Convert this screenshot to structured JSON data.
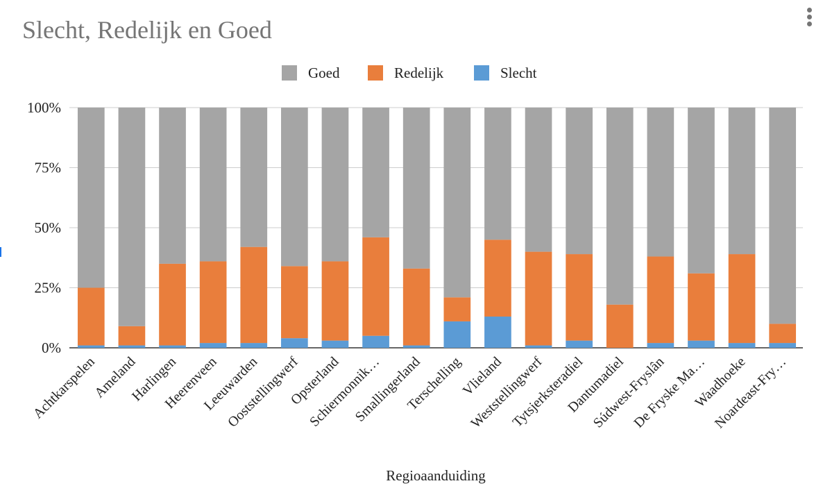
{
  "chart_data": {
    "type": "bar",
    "stacked": true,
    "title": "Slecht, Redelijk en Goed",
    "xlabel": "Regioaanduiding",
    "ylabel": "",
    "ylim": [
      0,
      1
    ],
    "yticks": [
      "0%",
      "25%",
      "50%",
      "75%",
      "100%"
    ],
    "grid": true,
    "legend_position": "top",
    "categories": [
      "Achtkarspelen",
      "Ameland",
      "Harlingen",
      "Heerenveen",
      "Leeuwarden",
      "Ooststellingwerf",
      "Opsterland",
      "Schiermonnik…",
      "Smallingerland",
      "Terschelling",
      "Vlieland",
      "Weststellingwerf",
      "Tytsjerksteradiel",
      "Dantumadiel",
      "Súdwest-Fryslân",
      "De Fryske Ma…",
      "Waadhoeke",
      "Noardeast-Fry…"
    ],
    "series": [
      {
        "name": "Slecht",
        "color": "#5b9bd5",
        "values": [
          0.01,
          0.01,
          0.01,
          0.02,
          0.02,
          0.04,
          0.03,
          0.05,
          0.01,
          0.11,
          0.13,
          0.01,
          0.03,
          0.0,
          0.02,
          0.03,
          0.02,
          0.02
        ]
      },
      {
        "name": "Redelijk",
        "color": "#e97e3c",
        "values": [
          0.24,
          0.08,
          0.34,
          0.34,
          0.4,
          0.3,
          0.33,
          0.41,
          0.32,
          0.1,
          0.32,
          0.39,
          0.36,
          0.18,
          0.36,
          0.28,
          0.37,
          0.08
        ]
      },
      {
        "name": "Goed",
        "color": "#a5a5a5",
        "values": [
          0.75,
          0.91,
          0.65,
          0.64,
          0.58,
          0.66,
          0.64,
          0.54,
          0.67,
          0.79,
          0.55,
          0.6,
          0.61,
          0.82,
          0.62,
          0.69,
          0.61,
          0.9
        ]
      }
    ],
    "legend_order": [
      "Goed",
      "Redelijk",
      "Slecht"
    ]
  }
}
